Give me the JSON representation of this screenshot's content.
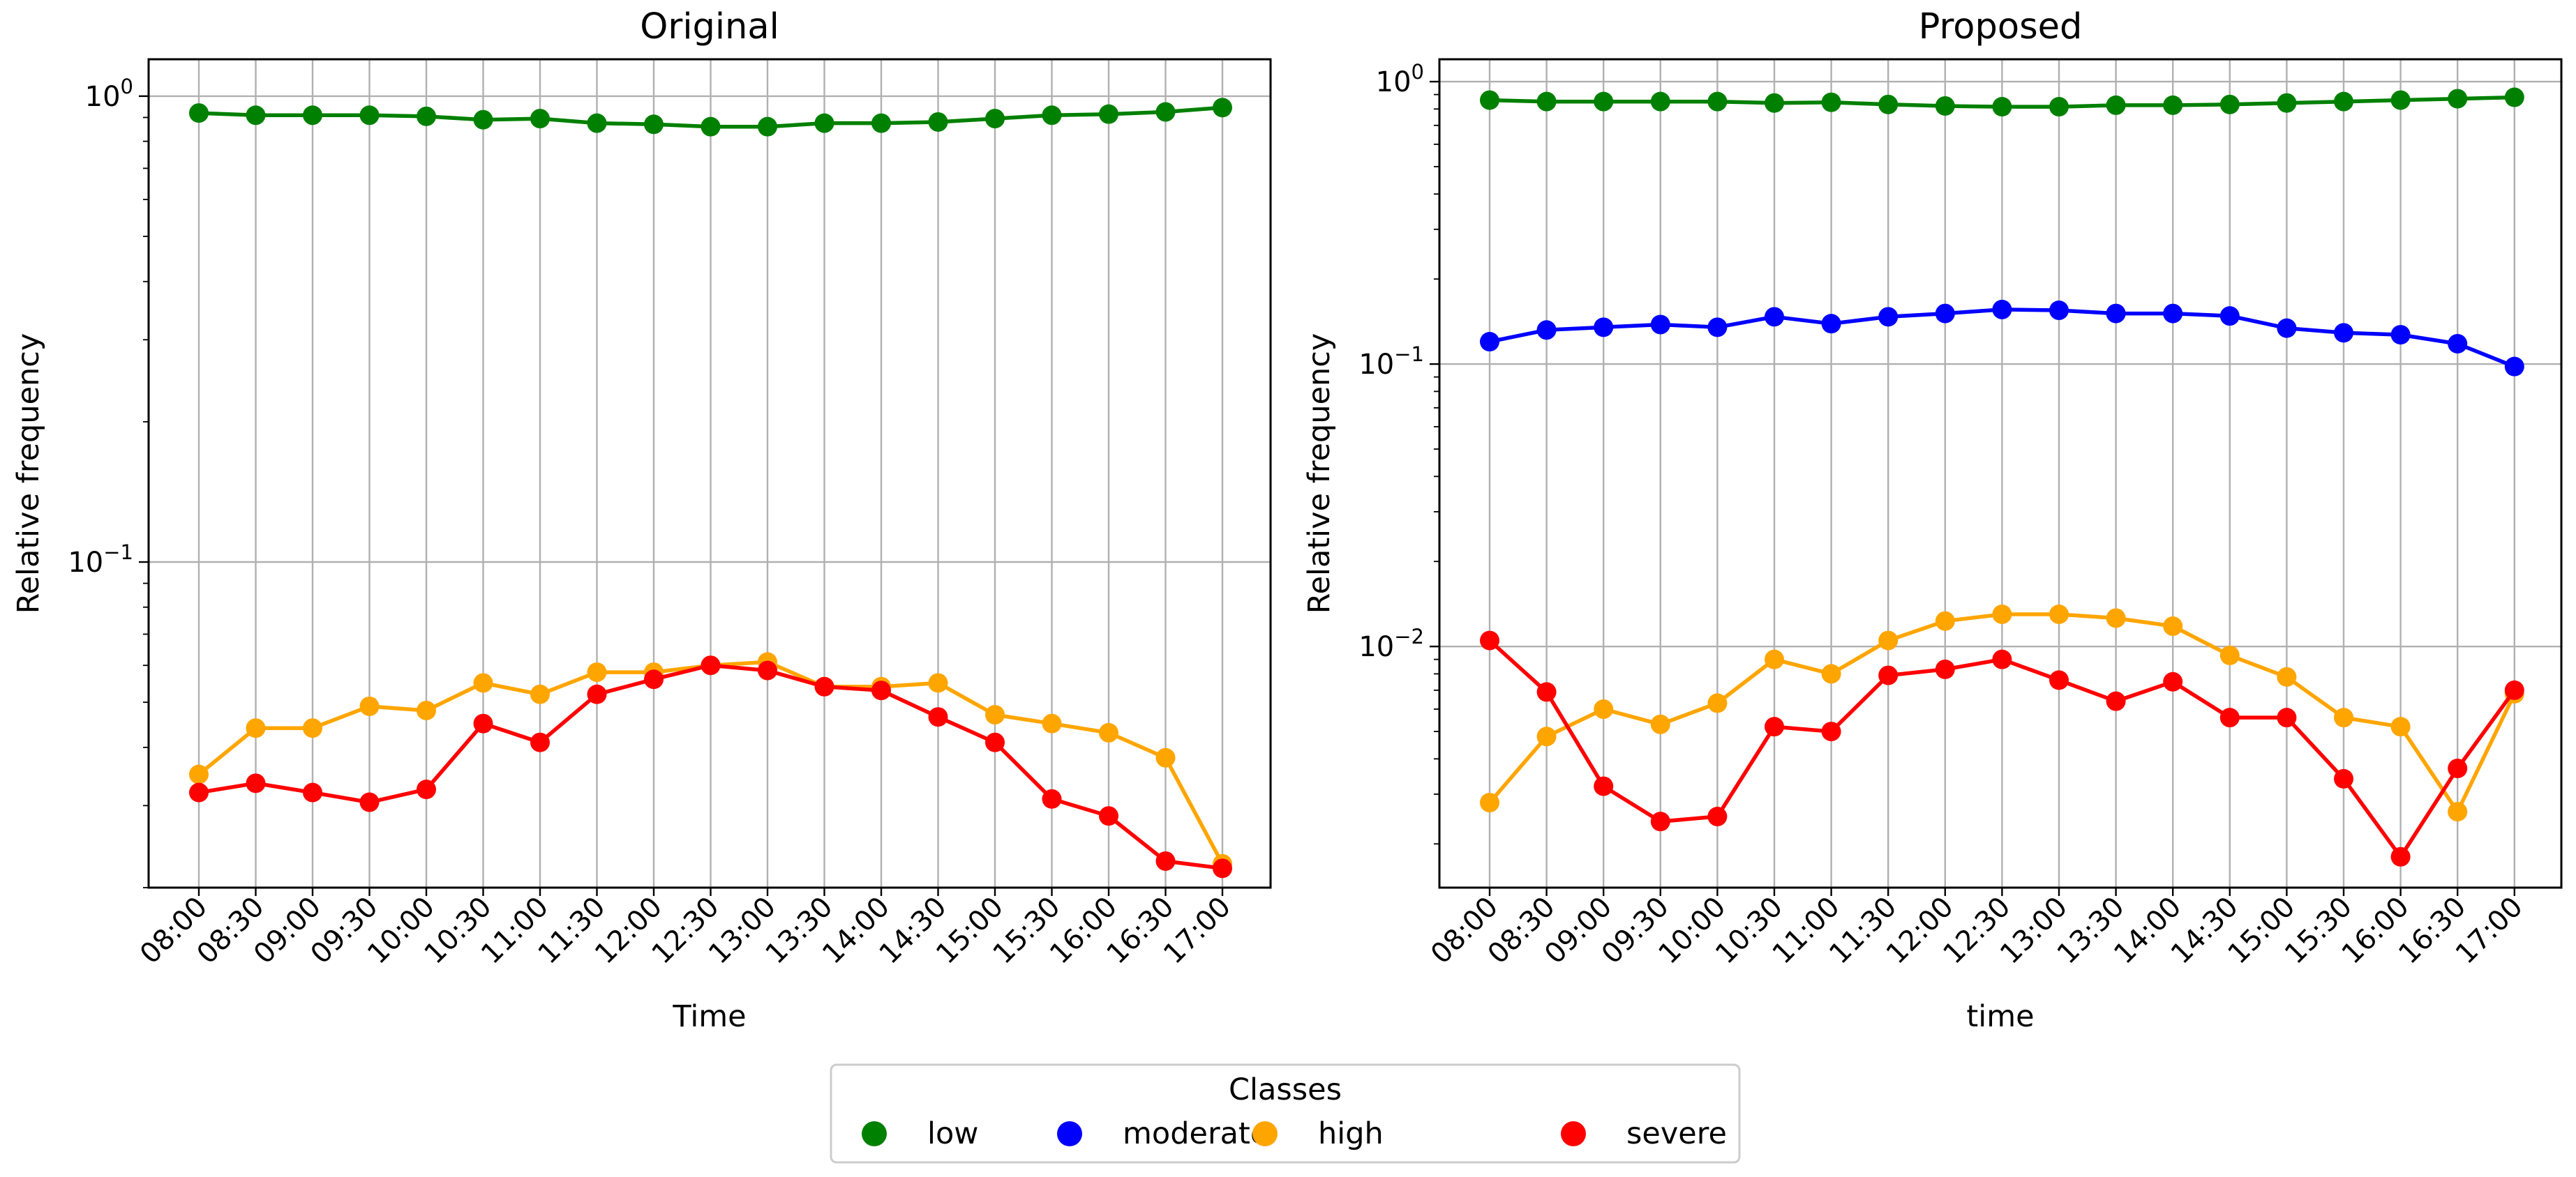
{
  "legend": {
    "title": "Classes",
    "placement": "bottom-center",
    "entries": [
      {
        "label": "low",
        "color": "#008000"
      },
      {
        "label": "moderate",
        "color": "#0000ff"
      },
      {
        "label": "high",
        "color": "#ffa500"
      },
      {
        "label": "severe",
        "color": "#ff0000"
      }
    ]
  },
  "chart_data": [
    {
      "type": "line",
      "title": "Original",
      "xlabel": "Time",
      "ylabel": "Relative frequency",
      "yscale": "log",
      "ylim": [
        0.02,
        1.2
      ],
      "ytick_labels": [
        "10^0",
        "10^-1"
      ],
      "grid": true,
      "categories": [
        "08:00",
        "08:30",
        "09:00",
        "09:30",
        "10:00",
        "10:30",
        "11:00",
        "11:30",
        "12:00",
        "12:30",
        "13:00",
        "13:30",
        "14:00",
        "14:30",
        "15:00",
        "15:30",
        "16:00",
        "16:30",
        "17:00"
      ],
      "series": [
        {
          "name": "low",
          "color": "#008000",
          "values": [
            0.92,
            0.91,
            0.91,
            0.91,
            0.905,
            0.89,
            0.895,
            0.875,
            0.87,
            0.86,
            0.86,
            0.875,
            0.875,
            0.88,
            0.895,
            0.91,
            0.915,
            0.925,
            0.945
          ]
        },
        {
          "name": "high",
          "color": "#ffa500",
          "values": [
            0.035,
            0.044,
            0.044,
            0.049,
            0.048,
            0.055,
            0.052,
            0.058,
            0.058,
            0.06,
            0.061,
            0.054,
            0.054,
            0.055,
            0.047,
            0.045,
            0.043,
            0.038,
            0.0225
          ]
        },
        {
          "name": "severe",
          "color": "#ff0000",
          "values": [
            0.032,
            0.0335,
            0.032,
            0.0305,
            0.0325,
            0.045,
            0.041,
            0.052,
            0.056,
            0.06,
            0.0585,
            0.054,
            0.053,
            0.0465,
            0.041,
            0.031,
            0.0285,
            0.0228,
            0.022
          ]
        }
      ]
    },
    {
      "type": "line",
      "title": "Proposed",
      "xlabel": "time",
      "ylabel": "Relative frequency",
      "yscale": "log",
      "ylim": [
        0.0014,
        1.2
      ],
      "ytick_labels": [
        "10^0",
        "10^-1",
        "10^-2"
      ],
      "grid": true,
      "categories": [
        "08:00",
        "08:30",
        "09:00",
        "09:30",
        "10:00",
        "10:30",
        "11:00",
        "11:30",
        "12:00",
        "12:30",
        "13:00",
        "13:30",
        "14:00",
        "14:30",
        "15:00",
        "15:30",
        "16:00",
        "16:30",
        "17:00"
      ],
      "series": [
        {
          "name": "low",
          "color": "#008000",
          "values": [
            0.86,
            0.85,
            0.85,
            0.85,
            0.85,
            0.84,
            0.845,
            0.83,
            0.82,
            0.815,
            0.815,
            0.825,
            0.825,
            0.83,
            0.84,
            0.85,
            0.86,
            0.87,
            0.88
          ]
        },
        {
          "name": "moderate",
          "color": "#0000ff",
          "values": [
            0.12,
            0.132,
            0.135,
            0.138,
            0.135,
            0.147,
            0.139,
            0.147,
            0.151,
            0.156,
            0.155,
            0.151,
            0.151,
            0.148,
            0.134,
            0.129,
            0.127,
            0.118,
            0.098
          ]
        },
        {
          "name": "high",
          "color": "#ffa500",
          "values": [
            0.0028,
            0.0048,
            0.006,
            0.0053,
            0.0063,
            0.009,
            0.008,
            0.0105,
            0.0123,
            0.013,
            0.013,
            0.0126,
            0.0118,
            0.0093,
            0.0078,
            0.0056,
            0.0052,
            0.0026,
            0.0068
          ]
        },
        {
          "name": "severe",
          "color": "#ff0000",
          "values": [
            0.0105,
            0.0069,
            0.0032,
            0.0024,
            0.0025,
            0.0052,
            0.005,
            0.0079,
            0.0083,
            0.009,
            0.0076,
            0.0064,
            0.0075,
            0.0056,
            0.0056,
            0.0034,
            0.0018,
            0.0037,
            0.007
          ]
        }
      ]
    }
  ]
}
